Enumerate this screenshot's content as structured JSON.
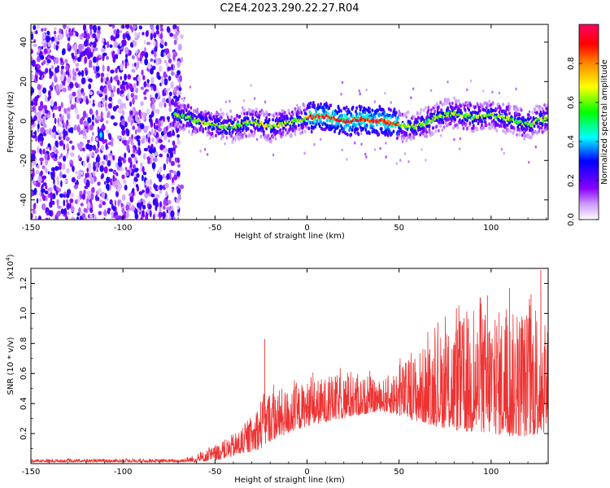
{
  "title": "C2E4.2023.290.22.27.R04",
  "chart_data": [
    {
      "type": "heatmap",
      "xlabel": "Height of straight line (km)",
      "ylabel": "Frequency (Hz)",
      "xlim": [
        -150,
        131
      ],
      "ylim": [
        -50,
        49
      ],
      "xticks": [
        -150,
        -100,
        -50,
        0,
        50,
        100
      ],
      "yticks": [
        -40,
        -20,
        0,
        20,
        40
      ],
      "colorbar": {
        "label": "Normalized spectral amplitude",
        "range": [
          0,
          1
        ],
        "ticks": [
          "0.0",
          "0.2",
          "0.4",
          "0.6",
          "0.8"
        ],
        "colors": [
          "#ffffff",
          "#8800ff",
          "#0000ff",
          "#00ffff",
          "#00ff00",
          "#ffff00",
          "#ff8800",
          "#ff0000",
          "#ff0066"
        ]
      },
      "noise_region": [
        -150,
        -72
      ],
      "signal_center_curve": {
        "x": [
          -72,
          -60,
          -50,
          -40,
          -30,
          -20,
          -10,
          0,
          10,
          20,
          30,
          40,
          50,
          60,
          70,
          80,
          90,
          100,
          110,
          120,
          131
        ],
        "y": [
          4,
          0,
          -2,
          -3,
          0,
          -3,
          -1,
          2,
          2,
          0,
          1,
          0,
          -2,
          -3,
          2,
          4,
          2,
          3,
          1,
          -2,
          2
        ]
      },
      "isolated_feature": {
        "x": -112,
        "y": -7
      }
    },
    {
      "type": "line",
      "xlabel": "Height of straight line (km)",
      "ylabel": "SNR (10 * v/v)",
      "scale_label": "(x10^4)",
      "xlim": [
        -150,
        131
      ],
      "ylim": [
        0,
        1.3
      ],
      "xticks": [
        -150,
        -100,
        -50,
        0,
        50,
        100
      ],
      "yticks": [
        "0.2",
        "0.4",
        "0.6",
        "0.8",
        "1.0",
        "1.2"
      ],
      "series": [
        {
          "color": "#ee3333",
          "envelope": {
            "x": [
              -150,
              -100,
              -70,
              -60,
              -50,
              -40,
              -30,
              -25,
              -20,
              -10,
              0,
              20,
              40,
              50,
              60,
              70,
              80,
              90,
              100,
              110,
              120,
              128,
              131
            ],
            "low": [
              0.01,
              0.01,
              0.01,
              0.01,
              0.02,
              0.05,
              0.08,
              0.1,
              0.15,
              0.2,
              0.25,
              0.3,
              0.35,
              0.32,
              0.28,
              0.25,
              0.22,
              0.2,
              0.2,
              0.18,
              0.18,
              0.2,
              0.22
            ],
            "high": [
              0.03,
              0.03,
              0.03,
              0.06,
              0.12,
              0.2,
              0.3,
              0.45,
              0.5,
              0.5,
              0.55,
              0.6,
              0.55,
              0.65,
              0.75,
              0.85,
              0.95,
              1.0,
              1.05,
              1.0,
              1.05,
              1.1,
              0.9
            ]
          },
          "peaks": [
            {
              "x": -23,
              "y": 0.83
            },
            {
              "x": 98,
              "y": 1.12
            },
            {
              "x": 110,
              "y": 1.17
            },
            {
              "x": 127,
              "y": 1.29
            }
          ]
        }
      ]
    }
  ]
}
